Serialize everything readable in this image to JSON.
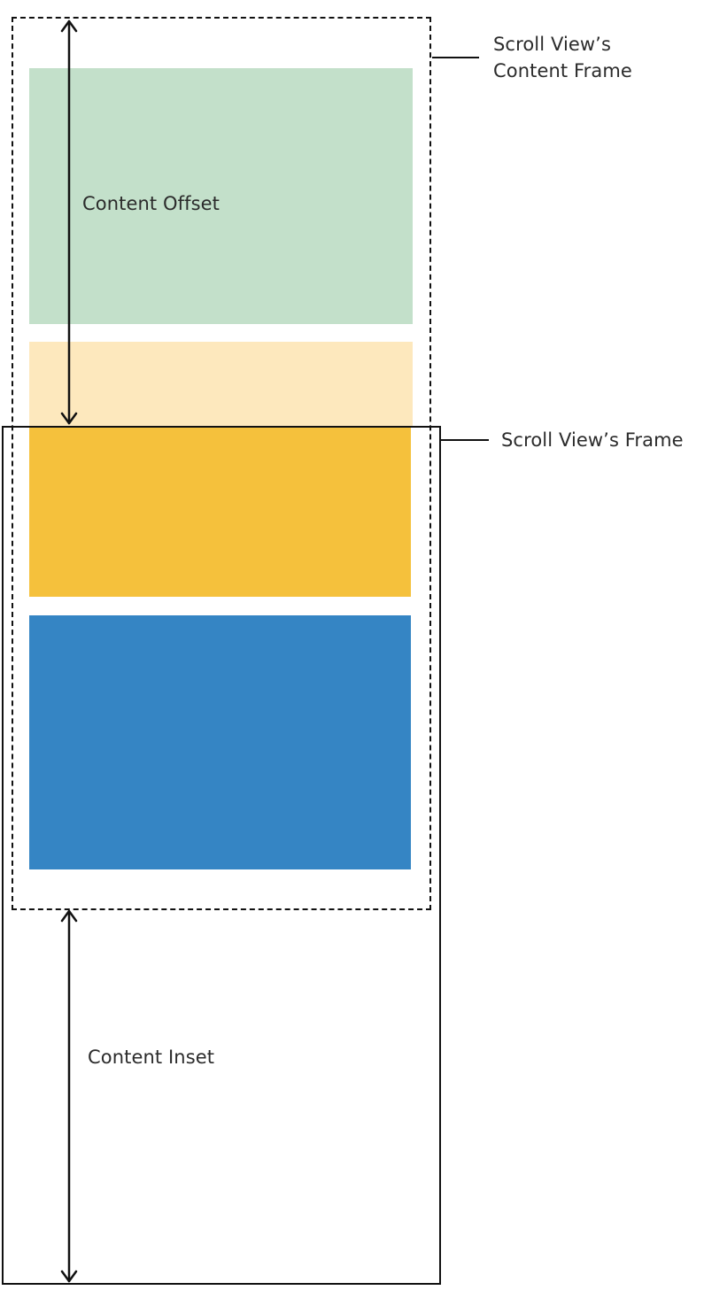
{
  "labels": {
    "content_offset": "Content Offset",
    "content_inset": "Content Inset",
    "scroll_view_frame": "Scroll View’s Frame",
    "content_frame_line1": "Scroll View’s",
    "content_frame_line2": "Content Frame"
  },
  "colors": {
    "green_block": "#c3e0ca",
    "light_yellow_block": "#fde8bd",
    "yellow_block": "#f5c13c",
    "blue_block": "#3585c4",
    "line": "#111111"
  }
}
